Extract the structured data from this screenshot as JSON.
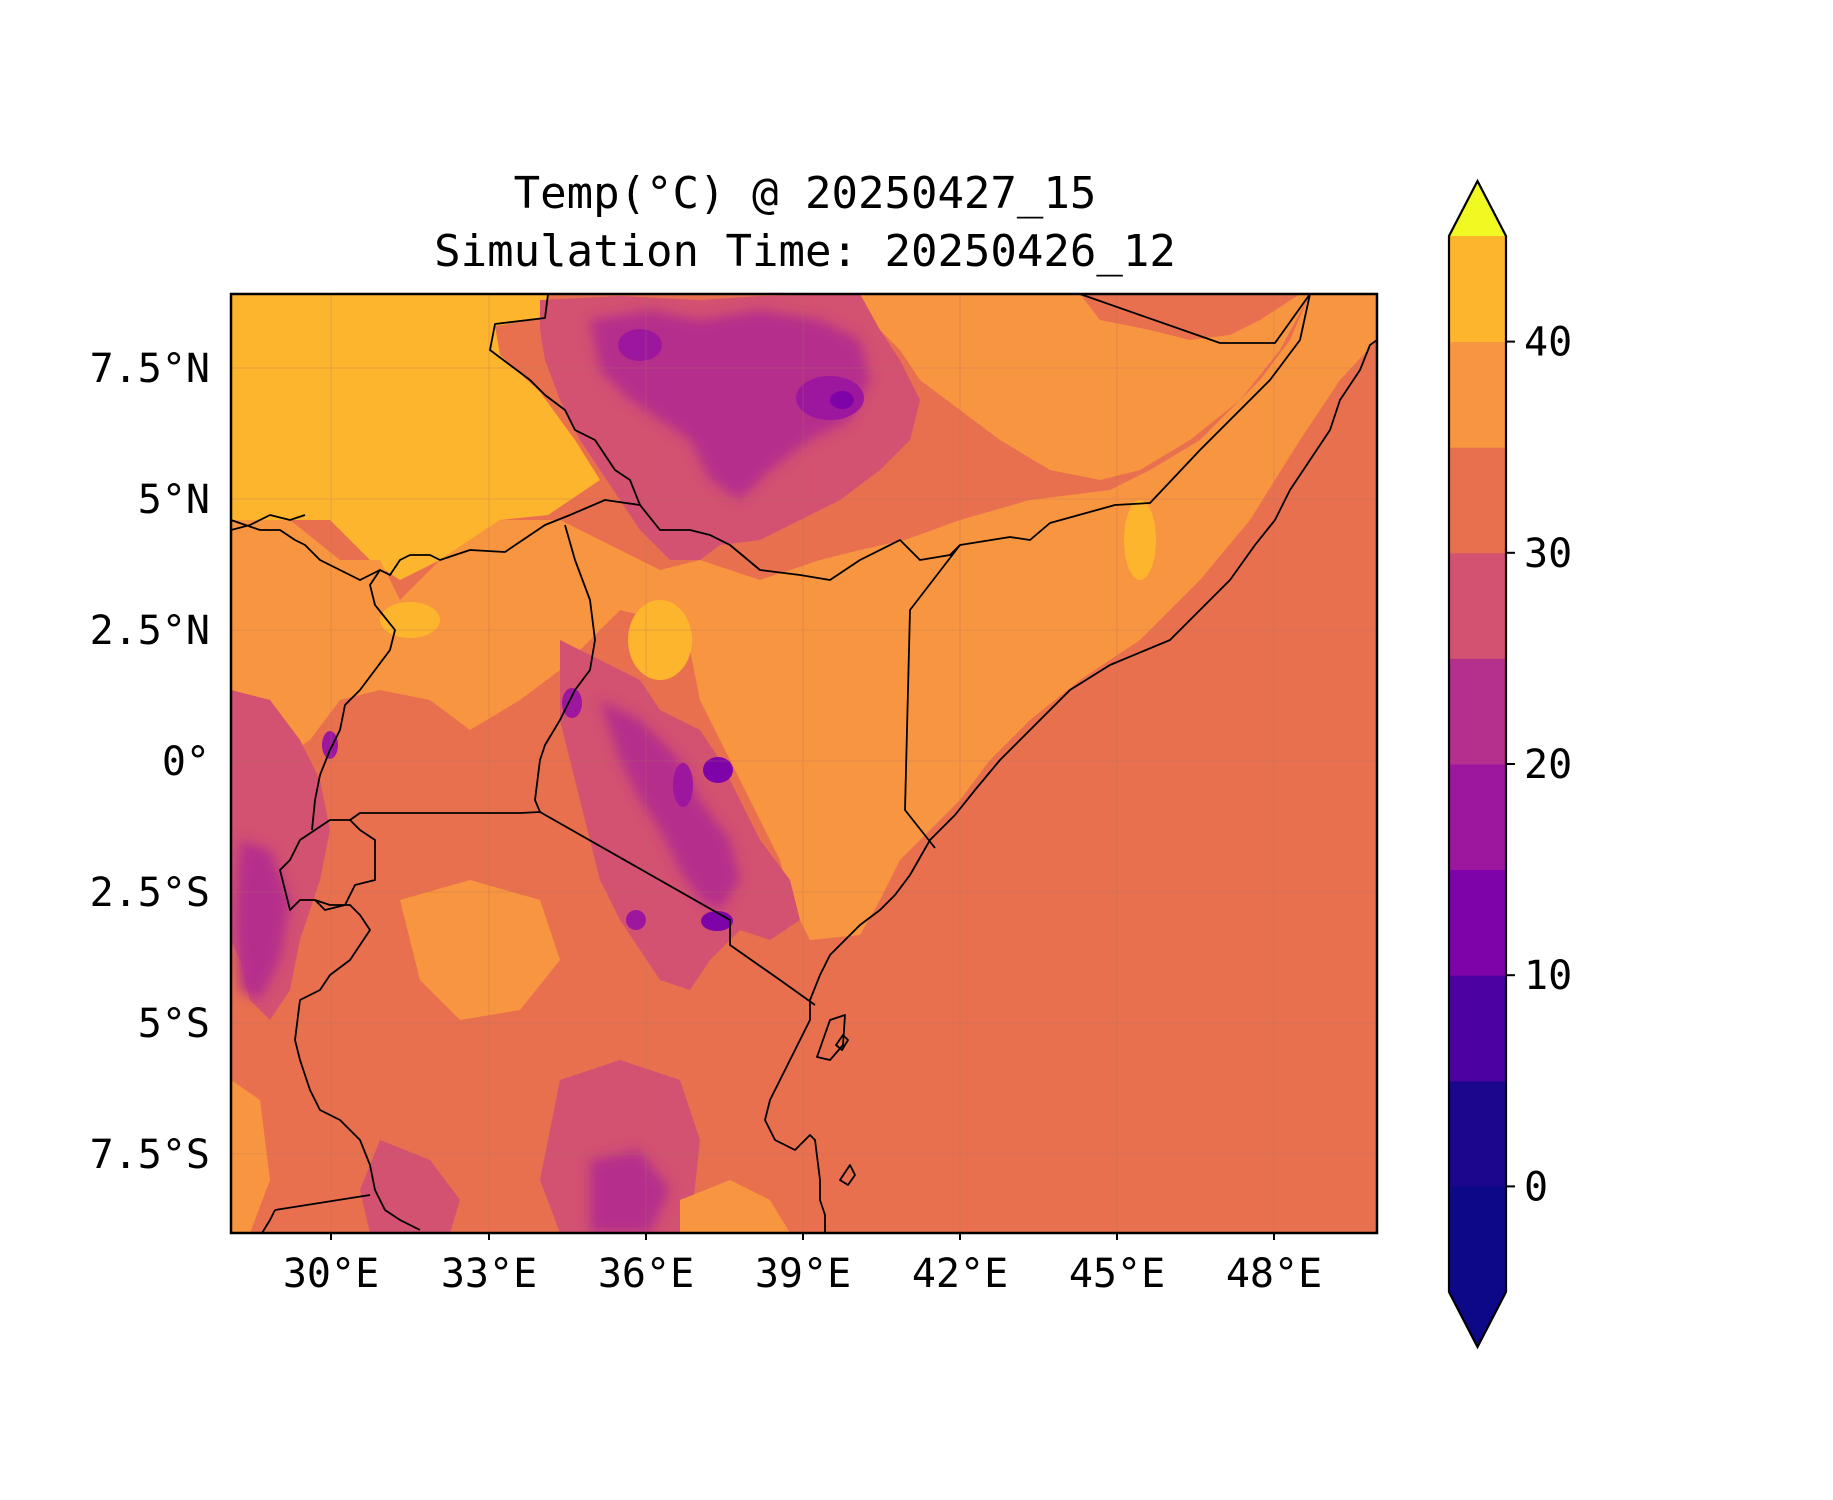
{
  "title": {
    "line1": "Temp(°C) @ 20250427_15",
    "line2": "Simulation Time: 20250426_12"
  },
  "map": {
    "x_ticks": [
      "30°E",
      "33°E",
      "36°E",
      "39°E",
      "42°E",
      "45°E",
      "48°E"
    ],
    "y_ticks": [
      "7.5°N",
      "5°N",
      "2.5°N",
      "0°",
      "2.5°S",
      "5°S",
      "7.5°S"
    ],
    "lon_range": [
      28.1,
      50.0
    ],
    "lat_range": [
      -8.9,
      9.0
    ]
  },
  "colorbar": {
    "ticks": [
      "0",
      "10",
      "20",
      "30",
      "40"
    ],
    "levels": [
      -5,
      0,
      5,
      10,
      15,
      20,
      25,
      30,
      35,
      40,
      45
    ],
    "colors": [
      "#0d0887",
      "#1b068d",
      "#4c02a1",
      "#7e03a8",
      "#9c179e",
      "#b52f8c",
      "#d35171",
      "#e8704f",
      "#f89540",
      "#fdb52e",
      "#f0f921"
    ],
    "extend": "both"
  },
  "chart_data": {
    "type": "heatmap",
    "title": "Temp(°C) @ 20250427_15\nSimulation Time: 20250426_12",
    "variable": "Temp(°C)",
    "valid_time": "20250427_15",
    "simulation_time": "20250426_12",
    "colorbar_range": [
      -5,
      45
    ],
    "colorbar_tick_values": [
      0,
      10,
      20,
      30,
      40
    ],
    "dominant_values": {
      "indian_ocean": 27.5,
      "somalia_coast_and_east_kenya_lowlands": 32.5,
      "south_sudan_north_uganda": 37.5,
      "ethiopian_highlands": 15,
      "kenyan_highlands": 20,
      "tanzania_interior": 27.5
    }
  }
}
